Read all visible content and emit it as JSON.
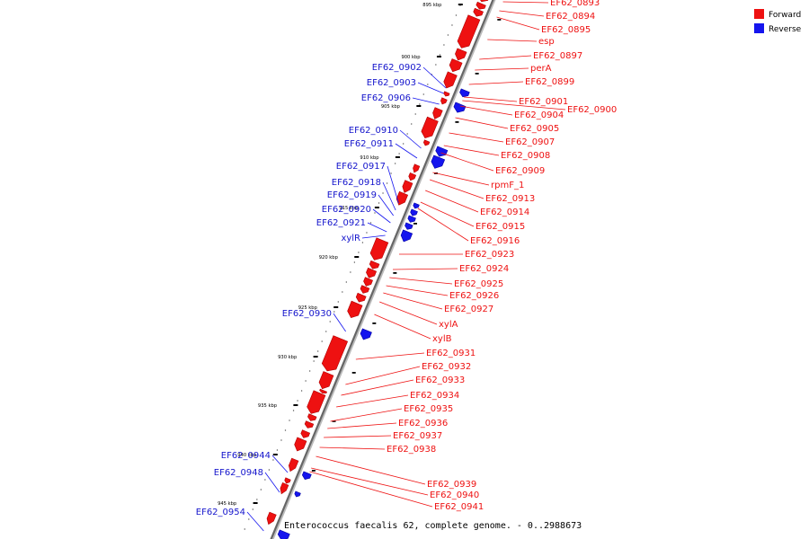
{
  "caption": "Enterococcus faecalis 62, complete genome. - 0..2988673",
  "legend": [
    {
      "label": "Forward",
      "color": "#ee1111"
    },
    {
      "label": "Reverse",
      "color": "#1515ee"
    }
  ],
  "ticks": [
    "895 kbp",
    "900 kbp",
    "905 kbp",
    "910 kbp",
    "915 kbp",
    "920 kbp",
    "925 kbp",
    "930 kbp",
    "935 kbp",
    "940 kbp",
    "945 kbp"
  ],
  "forward_labels": [
    "EF62_0893",
    "EF62_0894",
    "EF62_0895",
    "esp",
    "EF62_0897",
    "perA",
    "EF62_0899",
    "EF62_0901",
    "EF62_0900",
    "EF62_0904",
    "EF62_0905",
    "EF62_0907",
    "EF62_0908",
    "EF62_0909",
    "rpmF_1",
    "EF62_0913",
    "EF62_0914",
    "EF62_0915",
    "EF62_0916",
    "EF62_0923",
    "EF62_0924",
    "EF62_0925",
    "EF62_0926",
    "EF62_0927",
    "xylA",
    "xylB",
    "EF62_0931",
    "EF62_0932",
    "EF62_0933",
    "EF62_0934",
    "EF62_0935",
    "EF62_0936",
    "EF62_0937",
    "EF62_0938",
    "EF62_0939",
    "EF62_0940",
    "EF62_0941"
  ],
  "reverse_labels": [
    "EF62_0902",
    "EF62_0903",
    "EF62_0906",
    "EF62_0910",
    "EF62_0911",
    "EF62_0917",
    "EF62_0918",
    "EF62_0919",
    "EF62_0920",
    "EF62_0921",
    "xylR",
    "EF62_0930",
    "EF62_0944",
    "EF62_0948",
    "EF62_0954"
  ]
}
